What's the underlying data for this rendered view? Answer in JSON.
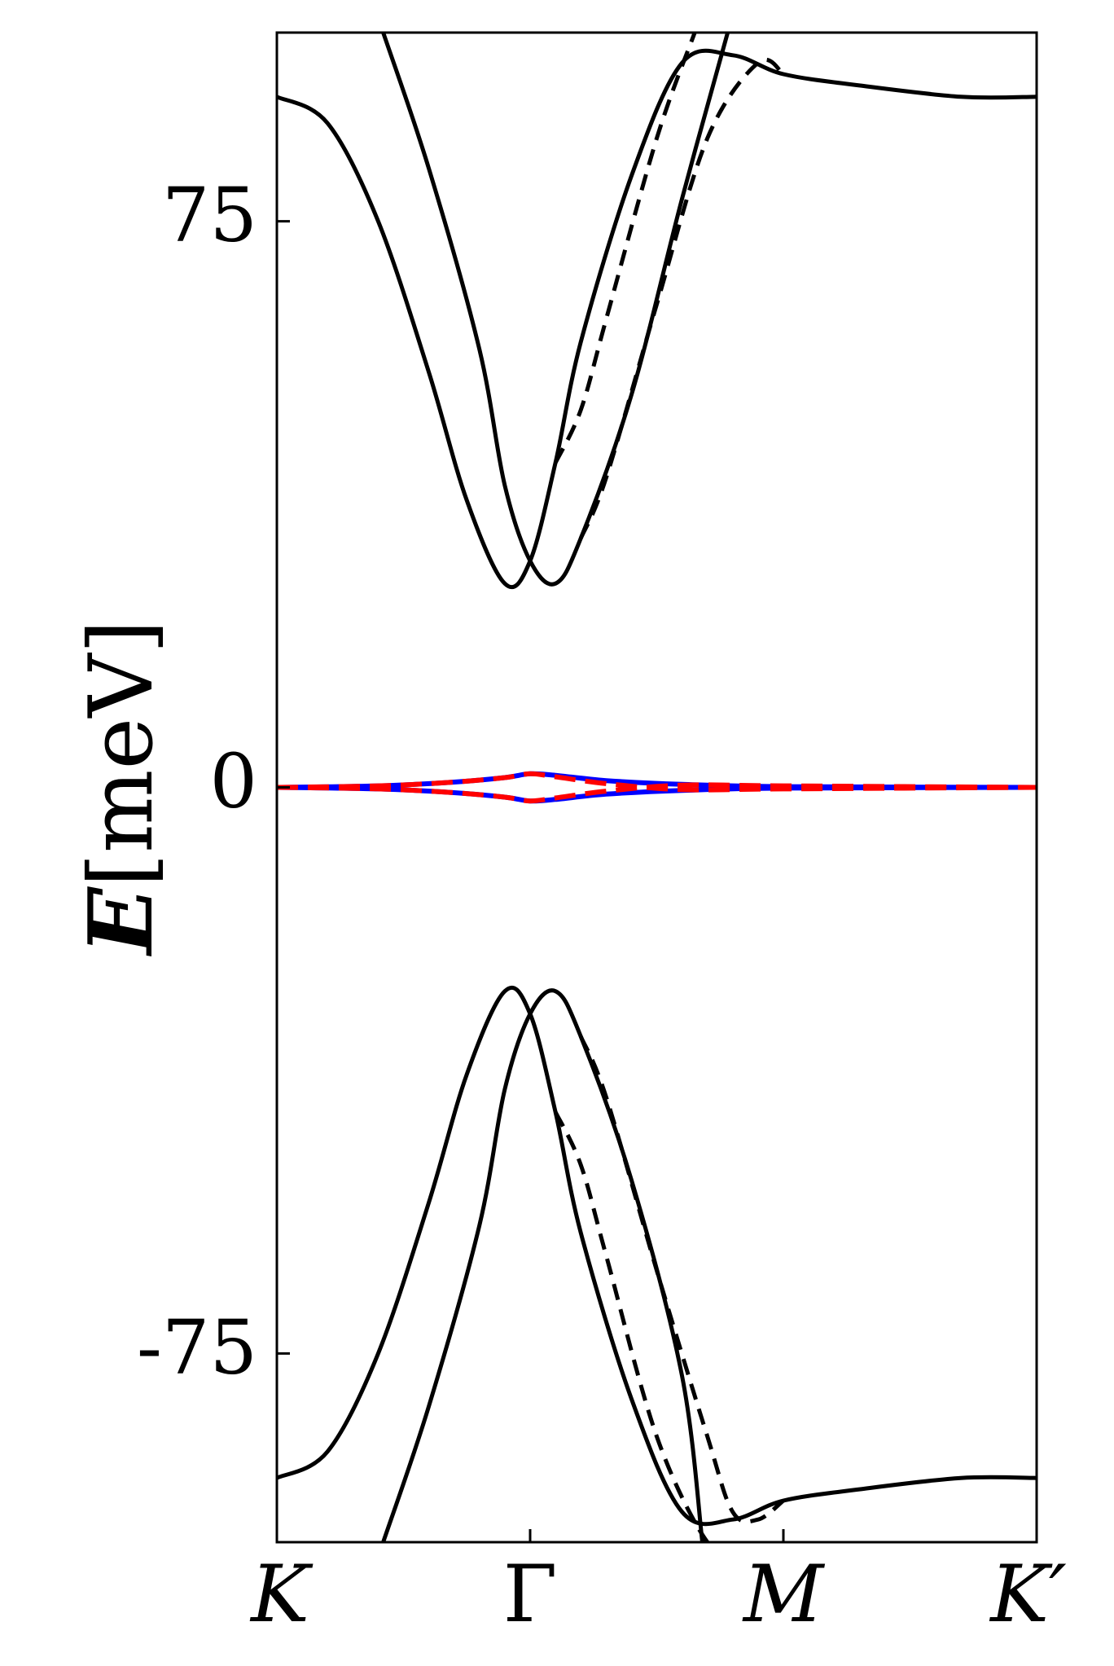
{
  "chart_data": {
    "type": "line",
    "title": "",
    "xlabel": "",
    "ylabel": "E[meV]",
    "ylabel_parts": {
      "symbol": "E",
      "unit": "[meV]"
    },
    "x_ticks": [
      {
        "position": 0,
        "label": "K"
      },
      {
        "position": 1,
        "label": "Γ"
      },
      {
        "position": 2,
        "label": "M"
      },
      {
        "position": 3,
        "label": "K′"
      }
    ],
    "xlim": [
      0,
      3
    ],
    "y_ticks": [
      {
        "value": 75,
        "label": "75"
      },
      {
        "value": 0,
        "label": "0"
      },
      {
        "value": -75,
        "label": "-75"
      }
    ],
    "ylim": [
      -100,
      100
    ],
    "grid": false,
    "legend": "none",
    "colors": {
      "solid": "#000000",
      "dashed": "#000000",
      "flat_solid": "#0000ff",
      "flat_dashed": "#ff0000"
    },
    "series": [
      {
        "style": "solid",
        "color": "#000000",
        "x": [
          0,
          0.2,
          0.4,
          0.6,
          0.75,
          0.9,
          1.0,
          1.1,
          1.2,
          1.4,
          1.6,
          1.8,
          2.0,
          2.3,
          2.7,
          3.0
        ],
        "y": [
          91.5,
          88,
          75,
          55,
          38,
          27,
          30,
          43,
          59,
          81,
          96,
          97,
          94.5,
          93,
          91.5,
          91.5
        ]
      },
      {
        "style": "solid",
        "color": "#000000",
        "x": [
          0.42,
          0.6,
          0.8,
          0.9,
          1.0,
          1.1,
          1.2,
          1.4,
          1.6,
          1.78
        ],
        "y": [
          100,
          82,
          58,
          40,
          30,
          27,
          33,
          52,
          78,
          100
        ]
      },
      {
        "style": "solid",
        "color": "#000000",
        "x": [
          0,
          0.2,
          0.4,
          0.6,
          0.75,
          0.9,
          1.0,
          1.1,
          1.2,
          1.4,
          1.6,
          1.8,
          2.0,
          2.3,
          2.7,
          3.0
        ],
        "y": [
          -91.5,
          -88,
          -75,
          -55,
          -38,
          -27,
          -30,
          -43,
          -59,
          -81,
          -96,
          -97,
          -94.5,
          -93,
          -91.5,
          -91.5
        ]
      },
      {
        "style": "solid",
        "color": "#000000",
        "x": [
          0.42,
          0.6,
          0.8,
          0.9,
          1.0,
          1.1,
          1.2,
          1.4,
          1.6,
          1.68
        ],
        "y": [
          -100,
          -82,
          -58,
          -40,
          -30,
          -27,
          -33,
          -52,
          -78,
          -100
        ]
      },
      {
        "style": "dashed",
        "color": "#000000",
        "x": [
          1.1,
          1.2,
          1.3,
          1.5,
          1.65
        ],
        "y": [
          43,
          50,
          62,
          86,
          100
        ]
      },
      {
        "style": "dashed",
        "color": "#000000",
        "x": [
          1.2,
          1.3,
          1.5,
          1.7,
          1.9,
          2.0
        ],
        "y": [
          33,
          41,
          64,
          86,
          96,
          94.5
        ]
      },
      {
        "style": "dashed",
        "color": "#000000",
        "x": [
          1.1,
          1.2,
          1.3,
          1.5,
          1.7,
          1.8
        ],
        "y": [
          -43,
          -50,
          -62,
          -86,
          -100,
          -100
        ]
      },
      {
        "style": "dashed",
        "color": "#000000",
        "x": [
          1.2,
          1.3,
          1.5,
          1.7,
          1.8,
          1.9,
          2.0
        ],
        "y": [
          -33,
          -41,
          -64,
          -86,
          -96,
          -97,
          -94.5
        ]
      },
      {
        "style": "solid",
        "color": "#0000ff",
        "x": [
          0,
          0.4,
          0.7,
          0.9,
          1.0,
          1.1,
          1.3,
          1.6,
          2.0,
          3.0
        ],
        "y": [
          0,
          0.2,
          0.7,
          1.3,
          1.8,
          1.6,
          0.9,
          0.4,
          0.1,
          0
        ]
      },
      {
        "style": "solid",
        "color": "#0000ff",
        "x": [
          0,
          0.4,
          0.7,
          0.9,
          1.0,
          1.1,
          1.3,
          1.6,
          2.0,
          3.0
        ],
        "y": [
          0,
          -0.2,
          -0.7,
          -1.3,
          -1.8,
          -1.6,
          -0.9,
          -0.4,
          -0.1,
          0
        ]
      },
      {
        "style": "dashed",
        "color": "#ff0000",
        "x": [
          0,
          0.4,
          0.7,
          0.9,
          1.0,
          1.1,
          1.3,
          1.6,
          2.0,
          3.0
        ],
        "y": [
          0,
          0.2,
          0.7,
          1.3,
          1.8,
          1.4,
          0.5,
          -0.3,
          -0.2,
          0
        ]
      },
      {
        "style": "dashed",
        "color": "#ff0000",
        "x": [
          0,
          0.4,
          0.7,
          0.9,
          1.0,
          1.1,
          1.3,
          1.6,
          2.0,
          3.0
        ],
        "y": [
          0,
          -0.2,
          -0.7,
          -1.3,
          -1.8,
          -1.4,
          -0.5,
          0.3,
          0.2,
          0
        ]
      }
    ]
  }
}
